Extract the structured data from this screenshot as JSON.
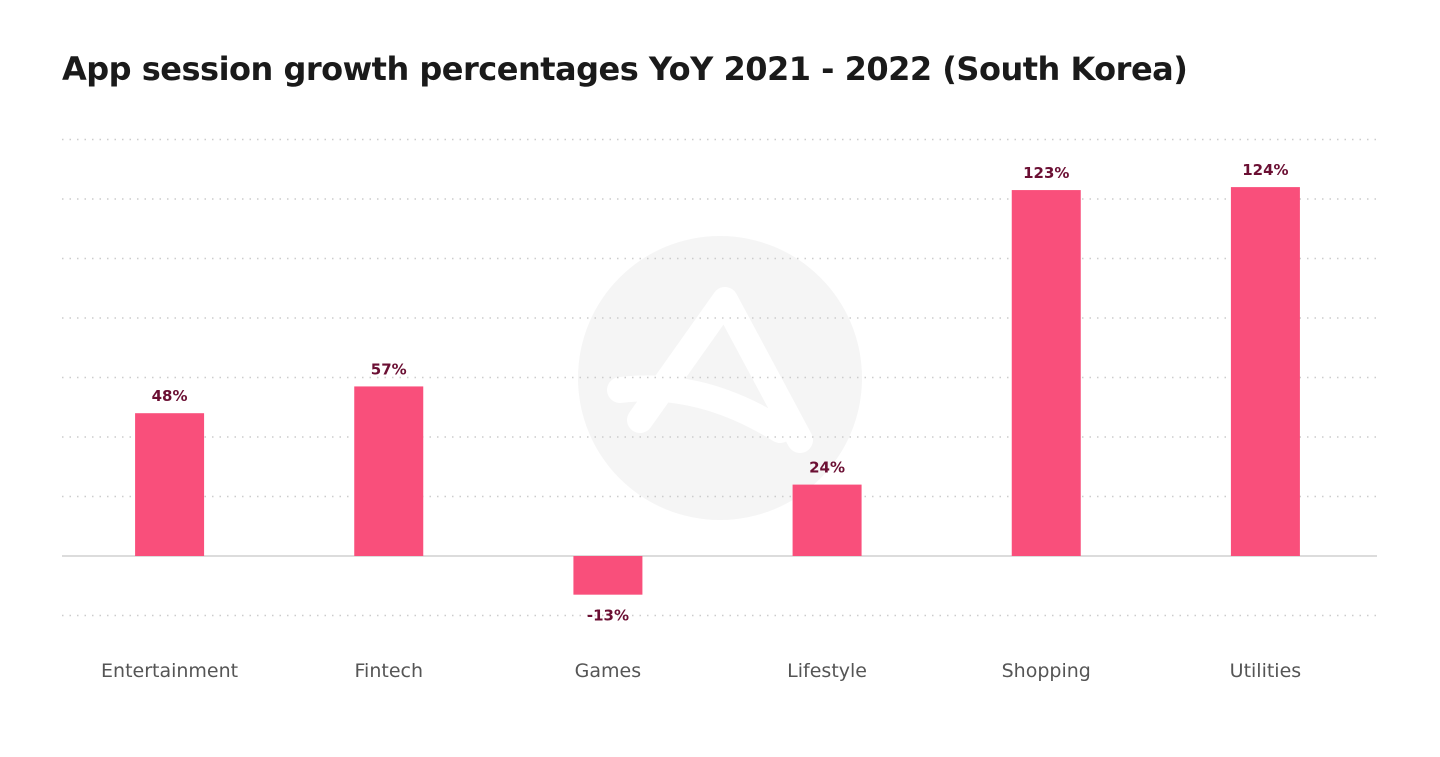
{
  "chart_data": {
    "type": "bar",
    "title": "App session growth percentages YoY 2021 - 2022 (South Korea)",
    "categories": [
      "Entertainment",
      "Fintech",
      "Games",
      "Lifestyle",
      "Shopping",
      "Utilities"
    ],
    "values": [
      48,
      57,
      -13,
      24,
      123,
      124
    ],
    "data_labels": [
      "48%",
      "57%",
      "-13%",
      "24%",
      "123%",
      "124%"
    ],
    "xlabel": "",
    "ylabel": "",
    "ylim": [
      -20,
      140
    ],
    "grid_step": 20,
    "grid": true,
    "legend": "none",
    "colors": {
      "bar": "#F94F7B",
      "label": "#6B0F33",
      "axis_text": "#555555",
      "grid": "#CCCCCC",
      "baseline": "#D0D0D0",
      "watermark": "#F5F5F5"
    }
  }
}
